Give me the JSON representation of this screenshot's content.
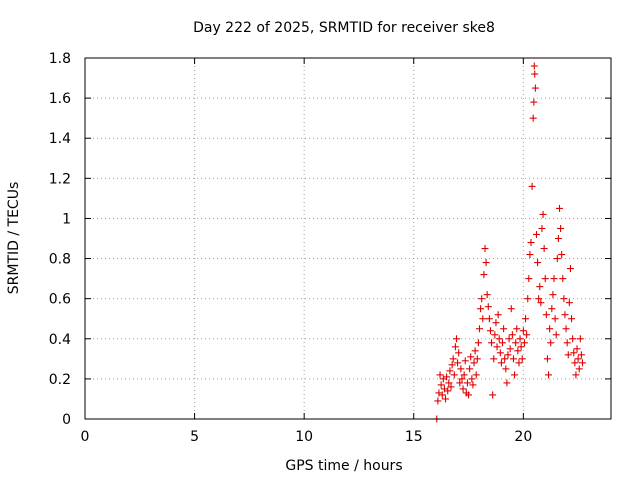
{
  "chart_data": {
    "type": "scatter",
    "title": "Day 222 of 2025, SRMTID for receiver ske8",
    "xlabel": "GPS time / hours",
    "ylabel": "SRMTID / TECUs",
    "xlim": [
      0,
      24
    ],
    "ylim": [
      0,
      1.8
    ],
    "xticks": [
      "0",
      "5",
      "10",
      "15",
      "20"
    ],
    "xtick_values": [
      0,
      5,
      10,
      15,
      20
    ],
    "yticks": [
      "0",
      "0.2",
      "0.4",
      "0.6",
      "0.8",
      "1",
      "1.2",
      "1.4",
      "1.6",
      "1.8"
    ],
    "ytick_values": [
      0,
      0.2,
      0.4,
      0.6,
      0.8,
      1.0,
      1.2,
      1.4,
      1.6,
      1.8
    ],
    "grid": true,
    "marker": "+",
    "series": [
      {
        "name": "SRMTID",
        "color": "#e00000",
        "points": [
          [
            16.05,
            0.0
          ],
          [
            16.1,
            0.09
          ],
          [
            16.15,
            0.13
          ],
          [
            16.2,
            0.22
          ],
          [
            16.25,
            0.17
          ],
          [
            16.3,
            0.12
          ],
          [
            16.35,
            0.2
          ],
          [
            16.4,
            0.15
          ],
          [
            16.45,
            0.1
          ],
          [
            16.5,
            0.21
          ],
          [
            16.55,
            0.14
          ],
          [
            16.6,
            0.18
          ],
          [
            16.65,
            0.24
          ],
          [
            16.7,
            0.16
          ],
          [
            16.75,
            0.27
          ],
          [
            16.8,
            0.3
          ],
          [
            16.85,
            0.22
          ],
          [
            16.9,
            0.36
          ],
          [
            16.95,
            0.4
          ],
          [
            17.0,
            0.28
          ],
          [
            17.05,
            0.33
          ],
          [
            17.1,
            0.18
          ],
          [
            17.15,
            0.25
          ],
          [
            17.2,
            0.2
          ],
          [
            17.25,
            0.15
          ],
          [
            17.3,
            0.22
          ],
          [
            17.35,
            0.29
          ],
          [
            17.4,
            0.13
          ],
          [
            17.45,
            0.18
          ],
          [
            17.5,
            0.12
          ],
          [
            17.55,
            0.25
          ],
          [
            17.6,
            0.31
          ],
          [
            17.65,
            0.2
          ],
          [
            17.7,
            0.17
          ],
          [
            17.75,
            0.28
          ],
          [
            17.8,
            0.34
          ],
          [
            17.85,
            0.22
          ],
          [
            17.9,
            0.3
          ],
          [
            17.95,
            0.38
          ],
          [
            18.0,
            0.45
          ],
          [
            18.05,
            0.55
          ],
          [
            18.1,
            0.6
          ],
          [
            18.15,
            0.5
          ],
          [
            18.2,
            0.72
          ],
          [
            18.25,
            0.85
          ],
          [
            18.3,
            0.78
          ],
          [
            18.35,
            0.62
          ],
          [
            18.4,
            0.56
          ],
          [
            18.45,
            0.5
          ],
          [
            18.5,
            0.44
          ],
          [
            18.55,
            0.38
          ],
          [
            18.6,
            0.12
          ],
          [
            18.65,
            0.3
          ],
          [
            18.7,
            0.42
          ],
          [
            18.75,
            0.48
          ],
          [
            18.8,
            0.36
          ],
          [
            18.85,
            0.52
          ],
          [
            18.9,
            0.4
          ],
          [
            18.95,
            0.33
          ],
          [
            19.0,
            0.28
          ],
          [
            19.05,
            0.38
          ],
          [
            19.1,
            0.45
          ],
          [
            19.15,
            0.3
          ],
          [
            19.2,
            0.25
          ],
          [
            19.25,
            0.18
          ],
          [
            19.3,
            0.32
          ],
          [
            19.35,
            0.4
          ],
          [
            19.4,
            0.35
          ],
          [
            19.45,
            0.55
          ],
          [
            19.5,
            0.42
          ],
          [
            19.55,
            0.3
          ],
          [
            19.6,
            0.22
          ],
          [
            19.65,
            0.38
          ],
          [
            19.7,
            0.45
          ],
          [
            19.75,
            0.34
          ],
          [
            19.8,
            0.28
          ],
          [
            19.85,
            0.4
          ],
          [
            19.9,
            0.36
          ],
          [
            19.95,
            0.3
          ],
          [
            20.0,
            0.44
          ],
          [
            20.05,
            0.38
          ],
          [
            20.1,
            0.5
          ],
          [
            20.15,
            0.42
          ],
          [
            20.2,
            0.6
          ],
          [
            20.25,
            0.7
          ],
          [
            20.3,
            0.82
          ],
          [
            20.35,
            0.88
          ],
          [
            20.4,
            1.16
          ],
          [
            20.45,
            1.5
          ],
          [
            20.48,
            1.58
          ],
          [
            20.5,
            1.76
          ],
          [
            20.52,
            1.72
          ],
          [
            20.55,
            1.65
          ],
          [
            20.6,
            0.92
          ],
          [
            20.65,
            0.78
          ],
          [
            20.7,
            0.6
          ],
          [
            20.75,
            0.66
          ],
          [
            20.8,
            0.58
          ],
          [
            20.85,
            0.95
          ],
          [
            20.9,
            1.02
          ],
          [
            20.95,
            0.85
          ],
          [
            21.0,
            0.7
          ],
          [
            21.05,
            0.52
          ],
          [
            21.1,
            0.3
          ],
          [
            21.15,
            0.22
          ],
          [
            21.2,
            0.45
          ],
          [
            21.25,
            0.38
          ],
          [
            21.3,
            0.55
          ],
          [
            21.35,
            0.62
          ],
          [
            21.4,
            0.7
          ],
          [
            21.45,
            0.5
          ],
          [
            21.5,
            0.42
          ],
          [
            21.55,
            0.8
          ],
          [
            21.6,
            0.9
          ],
          [
            21.65,
            1.05
          ],
          [
            21.7,
            0.95
          ],
          [
            21.75,
            0.82
          ],
          [
            21.8,
            0.7
          ],
          [
            21.85,
            0.6
          ],
          [
            21.9,
            0.52
          ],
          [
            21.95,
            0.45
          ],
          [
            22.0,
            0.38
          ],
          [
            22.05,
            0.32
          ],
          [
            22.1,
            0.58
          ],
          [
            22.15,
            0.75
          ],
          [
            22.2,
            0.5
          ],
          [
            22.25,
            0.4
          ],
          [
            22.3,
            0.33
          ],
          [
            22.35,
            0.28
          ],
          [
            22.4,
            0.22
          ],
          [
            22.45,
            0.35
          ],
          [
            22.5,
            0.3
          ],
          [
            22.55,
            0.25
          ],
          [
            22.6,
            0.4
          ],
          [
            22.65,
            0.32
          ],
          [
            22.7,
            0.28
          ]
        ]
      }
    ]
  }
}
